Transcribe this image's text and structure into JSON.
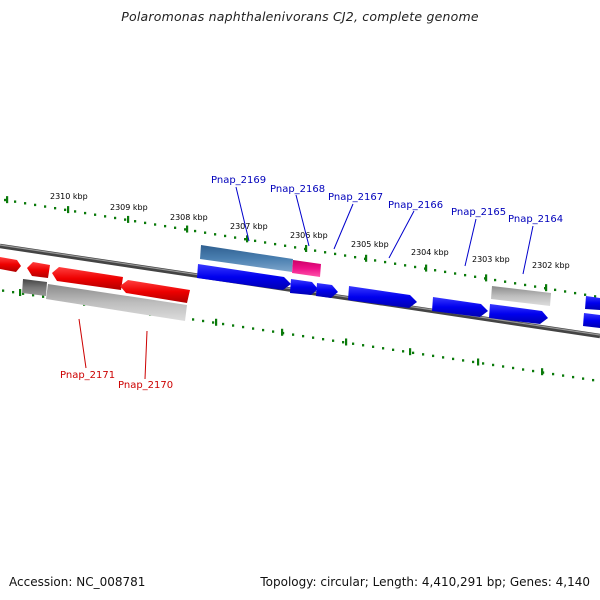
{
  "title": "Polaromonas naphthalenivorans CJ2, complete genome",
  "footer": {
    "accession": "Accession: NC_008781",
    "stats": "Topology: circular; Length: 4,410,291 bp; Genes: 4,140"
  },
  "colors": {
    "forward_gene": "#0000ee",
    "reverse_gene": "#ee0000",
    "pseudo_gene": "#bbbbbb",
    "highlight_blue": "#4a7fb0",
    "highlight_pink": "#ee1188",
    "ruler_dots": "#0a7a0a",
    "upper_label": "#0000bb",
    "lower_label": "#cc0000"
  },
  "ruler_labels": [
    "2310 kbp",
    "2309 kbp",
    "2308 kbp",
    "2307 kbp",
    "2306 kbp",
    "2305 kbp",
    "2304 kbp",
    "2303 kbp",
    "2302 kbp"
  ],
  "upper_genes": [
    "Pnap_2169",
    "Pnap_2168",
    "Pnap_2167",
    "Pnap_2166",
    "Pnap_2165",
    "Pnap_2164"
  ],
  "lower_genes": [
    "Pnap_2171",
    "Pnap_2170"
  ]
}
